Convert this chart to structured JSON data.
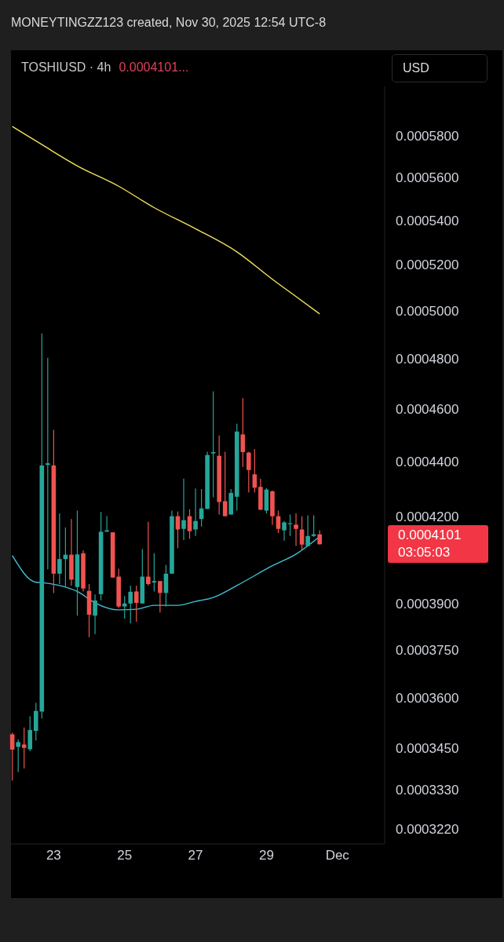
{
  "chart_data": {
    "type": "candlestick",
    "title": "TOSHIUSD · 4h",
    "annotations": [
      "MONEYTINGZZ123 created, Nov 30, 2025 12:54 UTC-8",
      "0.0004101...",
      "USD",
      "0.0004101\n03:05:03"
    ],
    "log": true,
    "xlim": [
      "2025-11-21T17:00",
      "2025-12-02T08:00"
    ],
    "xticks": [
      {
        "value": "2025-11-23",
        "label": "23"
      },
      {
        "value": "2025-11-25",
        "label": "25"
      },
      {
        "value": "2025-11-27",
        "label": "27"
      },
      {
        "value": "2025-11-29",
        "label": "29"
      },
      {
        "value": "2025-12-01",
        "label": "Dec"
      }
    ],
    "ylim": [
      0.000318,
      0.000605
    ],
    "yticks": [
      {
        "value": 0.000322,
        "label": "0.0003220"
      },
      {
        "value": 0.000333,
        "label": "0.0003330"
      },
      {
        "value": 0.000345,
        "label": "0.0003450"
      },
      {
        "value": 0.00036,
        "label": "0.0003600"
      },
      {
        "value": 0.000375,
        "label": "0.0003750"
      },
      {
        "value": 0.00039,
        "label": "0.0003900"
      },
      {
        "value": 0.00042,
        "label": "0.0004200"
      },
      {
        "value": 0.00044,
        "label": "0.0004400"
      },
      {
        "value": 0.00046,
        "label": "0.0004600"
      },
      {
        "value": 0.00048,
        "label": "0.0004800"
      },
      {
        "value": 0.0005,
        "label": "0.0005000"
      },
      {
        "value": 0.00052,
        "label": "0.0005200"
      },
      {
        "value": 0.00054,
        "label": "0.0005400"
      },
      {
        "value": 0.00056,
        "label": "0.0005600"
      },
      {
        "value": 0.00058,
        "label": "0.0005800"
      }
    ],
    "x": [
      "2025-11-21T20:00",
      "2025-11-22T00:00",
      "2025-11-22T04:00",
      "2025-11-22T08:00",
      "2025-11-22T12:00",
      "2025-11-22T16:00",
      "2025-11-22T20:00",
      "2025-11-23T00:00",
      "2025-11-23T04:00",
      "2025-11-23T08:00",
      "2025-11-23T12:00",
      "2025-11-23T16:00",
      "2025-11-23T20:00",
      "2025-11-24T00:00",
      "2025-11-24T04:00",
      "2025-11-24T08:00",
      "2025-11-24T12:00",
      "2025-11-24T16:00",
      "2025-11-24T20:00",
      "2025-11-25T00:00",
      "2025-11-25T04:00",
      "2025-11-25T08:00",
      "2025-11-25T12:00",
      "2025-11-25T16:00",
      "2025-11-25T20:00",
      "2025-11-26T00:00",
      "2025-11-26T04:00",
      "2025-11-26T08:00",
      "2025-11-26T12:00",
      "2025-11-26T16:00",
      "2025-11-26T20:00",
      "2025-11-27T00:00",
      "2025-11-27T04:00",
      "2025-11-27T08:00",
      "2025-11-27T12:00",
      "2025-11-27T16:00",
      "2025-11-27T20:00",
      "2025-11-28T00:00",
      "2025-11-28T04:00",
      "2025-11-28T08:00",
      "2025-11-28T12:00",
      "2025-11-28T16:00",
      "2025-11-28T20:00",
      "2025-11-29T00:00",
      "2025-11-29T04:00",
      "2025-11-29T08:00",
      "2025-11-29T12:00",
      "2025-11-29T16:00",
      "2025-11-29T20:00",
      "2025-11-30T00:00",
      "2025-11-30T04:00",
      "2025-11-30T08:00",
      "2025-11-30T12:00"
    ],
    "ohlc": [
      [
        0.000349,
        0.0003495,
        0.0003356,
        0.0003445
      ],
      [
        0.0003453,
        0.0003475,
        0.000338,
        0.0003467
      ],
      [
        0.000346,
        0.000351,
        0.000339,
        0.000345
      ],
      [
        0.0003446,
        0.0003544,
        0.000344,
        0.0003503
      ],
      [
        0.00035,
        0.0003585,
        0.0003472,
        0.000356
      ],
      [
        0.0003558,
        0.0004905,
        0.0003537,
        0.0004385
      ],
      [
        0.0004387,
        0.0004805,
        0.0004015,
        0.0004393
      ],
      [
        0.0004385,
        0.000452,
        0.0003935,
        0.0004
      ],
      [
        0.0004,
        0.000421,
        0.0003965,
        0.000405
      ],
      [
        0.000405,
        0.000416,
        0.0003955,
        0.0004065
      ],
      [
        0.0004065,
        0.000419,
        0.000396,
        0.000398
      ],
      [
        0.0003955,
        0.000422,
        0.000386,
        0.0004066
      ],
      [
        0.000407,
        0.000408,
        0.000394,
        0.000395
      ],
      [
        0.0003942,
        0.0003965,
        0.000379,
        0.0003863
      ],
      [
        0.000386,
        0.000393,
        0.00038,
        0.000391
      ],
      [
        0.0003931,
        0.0004215,
        0.000391,
        0.0004145
      ],
      [
        0.0004145,
        0.00042,
        0.0004145,
        0.000415
      ],
      [
        0.0004143,
        0.0004143,
        0.0003987,
        0.0003987
      ],
      [
        0.000399,
        0.0004017,
        0.0003885,
        0.000389
      ],
      [
        0.000389,
        0.0003925,
        0.000385,
        0.00039
      ],
      [
        0.00039,
        0.000396,
        0.0003835,
        0.0003939
      ],
      [
        0.000394,
        0.000396,
        0.000384,
        0.0003902
      ],
      [
        0.00039,
        0.0004085,
        0.00039,
        0.000399
      ],
      [
        0.000399,
        0.000418,
        0.000396,
        0.0003965
      ],
      [
        0.000397,
        0.000407,
        0.000394,
        0.0003975
      ],
      [
        0.0003975,
        0.0003975,
        0.000387,
        0.0003935
      ],
      [
        0.0003935,
        0.000403,
        0.000389,
        0.0004
      ],
      [
        0.0004,
        0.000422,
        0.0004,
        0.00042
      ],
      [
        0.00042,
        0.0004217,
        0.0004087,
        0.0004153
      ],
      [
        0.0004155,
        0.0004336,
        0.0004116,
        0.0004186
      ],
      [
        0.00042,
        0.0004225,
        0.000412,
        0.0004147
      ],
      [
        0.0004153,
        0.00043,
        0.000413,
        0.0004183
      ],
      [
        0.000419,
        0.0004298,
        0.0004163,
        0.0004228
      ],
      [
        0.0004226,
        0.0004436,
        0.0004226,
        0.0004424
      ],
      [
        0.000443,
        0.000467,
        0.0004268,
        0.0004435
      ],
      [
        0.0004421,
        0.0004498,
        0.0004206,
        0.0004251
      ],
      [
        0.0004254,
        0.0004436,
        0.00042,
        0.00042
      ],
      [
        0.0004206,
        0.0004298,
        0.0004206,
        0.0004284
      ],
      [
        0.000427,
        0.0004543,
        0.000422,
        0.0004513
      ],
      [
        0.0004502,
        0.0004643,
        0.000438,
        0.0004435
      ],
      [
        0.0004433,
        0.0004436,
        0.0004286,
        0.0004368
      ],
      [
        0.0004352,
        0.0004446,
        0.0004286,
        0.0004303
      ],
      [
        0.0004306,
        0.0004336,
        0.0004223,
        0.0004223
      ],
      [
        0.000422,
        0.0004302,
        0.000421,
        0.0004296
      ],
      [
        0.000429,
        0.0004292,
        0.0004169,
        0.00042
      ],
      [
        0.00042,
        0.000422,
        0.000414,
        0.0004155
      ],
      [
        0.000415,
        0.0004183,
        0.0004114,
        0.0004178
      ],
      [
        0.0004172,
        0.0004206,
        0.000413,
        0.0004175
      ],
      [
        0.000417,
        0.000421,
        0.0004095,
        0.0004155
      ],
      [
        0.0004153,
        0.00042,
        0.000408,
        0.00041
      ],
      [
        0.0004095,
        0.0004203,
        0.0004095,
        0.000413
      ],
      [
        0.000413,
        0.0004203,
        0.0004127,
        0.0004136
      ],
      [
        0.0004136,
        0.000415,
        0.0004101,
        0.0004101
      ]
    ],
    "colors": [
      "#ef5350",
      "#26a69a",
      "#ef5350",
      "#26a69a",
      "#26a69a",
      "#26a69a",
      "#26a69a",
      "#ef5350",
      "#26a69a",
      "#26a69a",
      "#ef5350",
      "#26a69a",
      "#ef5350",
      "#ef5350",
      "#26a69a",
      "#26a69a",
      "#26a69a",
      "#ef5350",
      "#ef5350",
      "#26a69a",
      "#26a69a",
      "#ef5350",
      "#26a69a",
      "#ef5350",
      "#26a69a",
      "#ef5350",
      "#26a69a",
      "#26a69a",
      "#ef5350",
      "#26a69a",
      "#ef5350",
      "#26a69a",
      "#26a69a",
      "#26a69a",
      "#26a69a",
      "#ef5350",
      "#ef5350",
      "#26a69a",
      "#26a69a",
      "#ef5350",
      "#ef5350",
      "#ef5350",
      "#ef5350",
      "#26a69a",
      "#ef5350",
      "#ef5350",
      "#26a69a",
      "#26a69a",
      "#ef5350",
      "#ef5350",
      "#26a69a",
      "#26a69a",
      "#ef5350"
    ],
    "series": [
      {
        "type": "line",
        "color": "#f2e35c",
        "x": [
          "2025-11-21T20:00",
          "2025-11-22T16:00",
          "2025-11-23T16:00",
          "2025-11-24T20:00",
          "2025-11-25T20:00",
          "2025-11-27T00:00",
          "2025-11-28T04:00",
          "2025-11-29T04:00",
          "2025-11-29T20:00",
          "2025-11-30T12:00"
        ],
        "values": [
          0.0005847,
          0.0005758,
          0.0005655,
          0.0005558,
          0.0005458,
          0.0005361,
          0.0005257,
          0.0005136,
          0.0005061,
          0.0004987
        ]
      },
      {
        "type": "line",
        "color": "#3fc1d6",
        "x": [
          "2025-11-21T20:00",
          "2025-11-22T12:00",
          "2025-11-22T16:00",
          "2025-11-23T04:00",
          "2025-11-23T16:00",
          "2025-11-24T04:00",
          "2025-11-24T20:00",
          "2025-11-25T08:00",
          "2025-11-25T20:00",
          "2025-11-26T12:00",
          "2025-11-27T00:00",
          "2025-11-27T12:00",
          "2025-11-28T04:00",
          "2025-11-29T04:00",
          "2025-11-29T20:00",
          "2025-11-30T12:00"
        ],
        "values": [
          0.0004062,
          0.0003971,
          0.000397,
          0.000396,
          0.000394,
          0.0003902,
          0.0003879,
          0.0003881,
          0.0003894,
          0.0003894,
          0.0003907,
          0.000392,
          0.000396,
          0.0004027,
          0.0004067,
          0.0004128
        ]
      }
    ]
  }
}
